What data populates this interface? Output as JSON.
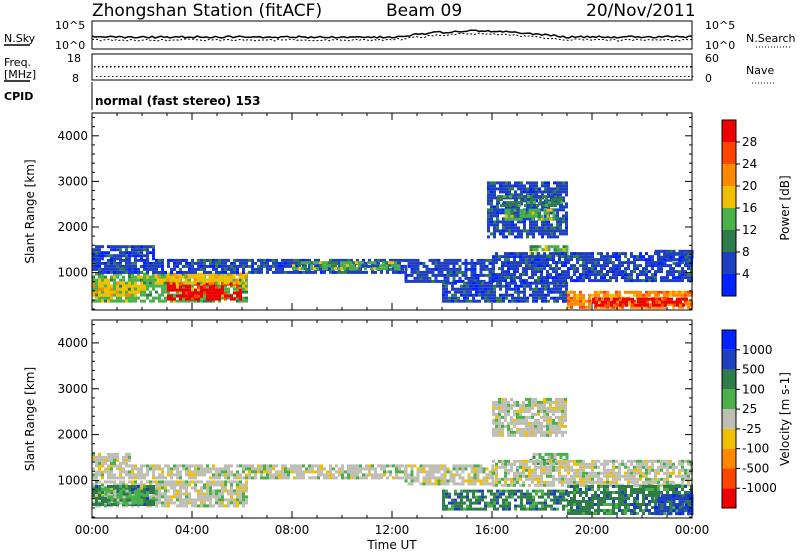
{
  "header": {
    "station": "Zhongshan Station (fitACF)",
    "beam": "Beam 09",
    "date": "20/Nov/2011"
  },
  "top_panels": {
    "nsky_label": "N.Sky",
    "nsky_ticks": [
      "10^5",
      "10^0"
    ],
    "nsearch_label": "N.Search",
    "nsearch_ticks": [
      "10^5",
      "10^0"
    ],
    "freq_label_1": "Freq.",
    "freq_label_2": "[MHz]",
    "freq_ticks": [
      "18",
      "8"
    ],
    "nave_label": "Nave",
    "nave_ticks": [
      "60",
      "0"
    ],
    "cpid_label": "CPID",
    "cpid_text": "normal (fast stereo) 153"
  },
  "colors": {
    "power": [
      "#0022ff",
      "#1e40c0",
      "#2e7d48",
      "#4ab04a",
      "#f0c000",
      "#ff8800",
      "#ff4400",
      "#ee0000"
    ],
    "velocity": [
      "#ee0000",
      "#ff4400",
      "#ff8800",
      "#f0c000",
      "#bebeb4",
      "#4ab04a",
      "#2e7d48",
      "#1e40c0",
      "#0022ff"
    ]
  },
  "chart_data": [
    {
      "type": "heatmap",
      "ylabel": "Slant Range [km]",
      "x_range": [
        "00:00",
        "24:00"
      ],
      "y_range": [
        180,
        4500
      ],
      "y_ticks": [
        1000,
        2000,
        3000,
        4000
      ],
      "colorbar": {
        "label": "Power [dB]",
        "ticks": [
          4,
          8,
          12,
          16,
          20,
          24,
          28
        ],
        "range": [
          0,
          30
        ]
      },
      "regions": [
        {
          "t0": 0.0,
          "t1": 6.2,
          "r0": 400,
          "r1": 1000,
          "level": 3
        },
        {
          "t0": 0.0,
          "t1": 2.0,
          "r0": 500,
          "r1": 800,
          "level": 4
        },
        {
          "t0": 3.0,
          "t1": 6.0,
          "r0": 450,
          "r1": 780,
          "level": 7
        },
        {
          "t0": 2.5,
          "t1": 6.2,
          "r0": 780,
          "r1": 1000,
          "level": 4
        },
        {
          "t0": 0.0,
          "t1": 12.5,
          "r0": 1000,
          "r1": 1300,
          "level": 1
        },
        {
          "t0": 8.0,
          "t1": 12.3,
          "r0": 1080,
          "r1": 1250,
          "level": 3
        },
        {
          "t0": 0.0,
          "t1": 2.5,
          "r0": 1300,
          "r1": 1600,
          "level": 1
        },
        {
          "t0": 12.5,
          "t1": 16.0,
          "r0": 800,
          "r1": 1300,
          "level": 1
        },
        {
          "t0": 14.0,
          "t1": 19.0,
          "r0": 400,
          "r1": 800,
          "level": 1
        },
        {
          "t0": 15.8,
          "t1": 19.0,
          "r0": 1800,
          "r1": 3000,
          "level": 1
        },
        {
          "t0": 16.5,
          "t1": 18.5,
          "r0": 2200,
          "r1": 2400,
          "level": 3
        },
        {
          "t0": 16.2,
          "t1": 18.8,
          "r0": 2500,
          "r1": 2700,
          "level": 2
        },
        {
          "t0": 17.5,
          "t1": 19.0,
          "r0": 1400,
          "r1": 1600,
          "level": 3
        },
        {
          "t0": 16.0,
          "t1": 24.0,
          "r0": 800,
          "r1": 1450,
          "level": 1
        },
        {
          "t0": 19.0,
          "t1": 24.0,
          "r0": 250,
          "r1": 600,
          "level": 5
        },
        {
          "t0": 20.0,
          "t1": 23.8,
          "r0": 300,
          "r1": 450,
          "level": 7
        },
        {
          "t0": 22.5,
          "t1": 24.0,
          "r0": 1200,
          "r1": 1500,
          "level": 1
        }
      ]
    },
    {
      "type": "heatmap",
      "ylabel": "Slant Range [km]",
      "xlabel": "Time UT",
      "x_ticks": [
        "00:00",
        "04:00",
        "08:00",
        "12:00",
        "16:00",
        "20:00",
        "00:00"
      ],
      "y_range": [
        180,
        4500
      ],
      "y_ticks": [
        1000,
        2000,
        3000,
        4000
      ],
      "colorbar": {
        "label": "Velocity [m s-1]",
        "ticks": [
          -1000,
          -500,
          -100,
          -25,
          25,
          100,
          500,
          1000
        ]
      },
      "regions": [
        {
          "t0": 0.0,
          "t1": 6.2,
          "r0": 450,
          "r1": 1000,
          "level": 4
        },
        {
          "t0": 0.0,
          "t1": 2.5,
          "r0": 450,
          "r1": 900,
          "level": 6
        },
        {
          "t0": 0.5,
          "t1": 2.0,
          "r0": 500,
          "r1": 800,
          "level": 5
        },
        {
          "t0": 0.0,
          "t1": 12.5,
          "r0": 1050,
          "r1": 1350,
          "level": 4
        },
        {
          "t0": 0.0,
          "t1": 1.5,
          "r0": 1350,
          "r1": 1600,
          "level": 4
        },
        {
          "t0": 12.5,
          "t1": 16.0,
          "r0": 900,
          "r1": 1350,
          "level": 4
        },
        {
          "t0": 14.0,
          "t1": 19.0,
          "r0": 400,
          "r1": 800,
          "level": 6
        },
        {
          "t0": 16.0,
          "t1": 19.0,
          "r0": 2000,
          "r1": 2800,
          "level": 4
        },
        {
          "t0": 17.5,
          "t1": 19.0,
          "r0": 1400,
          "r1": 1600,
          "level": 5
        },
        {
          "t0": 16.0,
          "t1": 24.0,
          "r0": 900,
          "r1": 1450,
          "level": 4
        },
        {
          "t0": 19.0,
          "t1": 24.0,
          "r0": 250,
          "r1": 900,
          "level": 6
        },
        {
          "t0": 22.5,
          "t1": 24.0,
          "r0": 300,
          "r1": 700,
          "level": 7
        }
      ]
    }
  ]
}
